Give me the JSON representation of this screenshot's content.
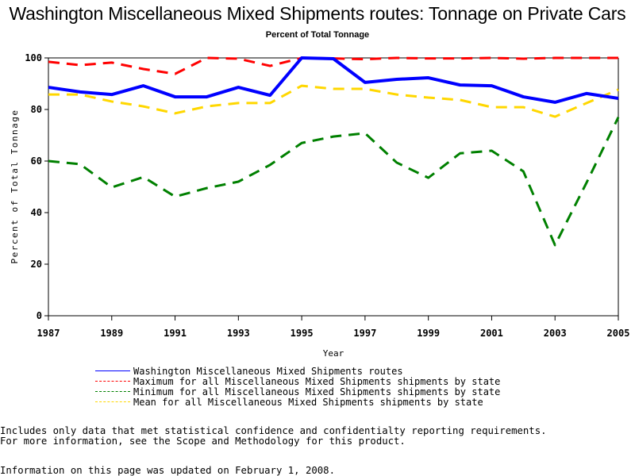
{
  "header": {
    "title": "Washington Miscellaneous Mixed Shipments routes: Tonnage on Private Cars",
    "subtitle": "Percent of Total Tonnage"
  },
  "chart_data": {
    "type": "line",
    "title": "Washington Miscellaneous Mixed Shipments routes: Tonnage on Private Cars",
    "subtitle": "Percent of Total Tonnage",
    "xlabel": "Year",
    "ylabel": "Percent of Total Tonnage",
    "xlim": [
      1987,
      2005
    ],
    "ylim": [
      0,
      100
    ],
    "x_ticks": [
      "1987",
      "1989",
      "1991",
      "1993",
      "1995",
      "1997",
      "1999",
      "2001",
      "2003",
      "2005"
    ],
    "y_ticks": [
      "0",
      "20",
      "40",
      "60",
      "80",
      "100"
    ],
    "grid": false,
    "legend_position": "bottom",
    "x": [
      1987,
      1988,
      1989,
      1990,
      1991,
      1992,
      1993,
      1994,
      1995,
      1996,
      1997,
      1998,
      1999,
      2000,
      2001,
      2002,
      2003,
      2004,
      2005
    ],
    "series": [
      {
        "name": "Washington Miscellaneous Mixed Shipments routes",
        "color": "#0000ff",
        "style": "solid",
        "values": [
          88.6,
          86.8,
          85.8,
          89.2,
          84.9,
          84.9,
          88.6,
          85.5,
          100,
          99.7,
          90.5,
          91.7,
          92.3,
          89.5,
          89.2,
          84.9,
          82.8,
          86.2,
          84.3
        ]
      },
      {
        "name": "Maximum for all Miscellaneous Mixed Shipments shipments by state",
        "color": "#ff0000",
        "style": "dashed",
        "values": [
          98.5,
          97.2,
          98.2,
          95.7,
          93.8,
          100,
          99.7,
          96.9,
          100,
          99.8,
          99.5,
          100,
          99.8,
          99.8,
          100,
          99.7,
          100,
          100,
          100
        ]
      },
      {
        "name": "Minimum for all Miscellaneous Mixed Shipments shipments by state",
        "color": "#008000",
        "style": "dashed",
        "values": [
          60,
          58.8,
          49.8,
          53.8,
          46.2,
          49.5,
          52,
          58.5,
          67,
          69.5,
          70.8,
          59.4,
          53.5,
          63,
          64,
          56,
          27.4,
          51.7,
          77
        ]
      },
      {
        "name": "Mean for all Miscellaneous Mixed Shipments shipments by state",
        "color": "#ffd700",
        "style": "dashed",
        "values": [
          85.8,
          85.8,
          83.1,
          81.2,
          78.5,
          81.2,
          82.5,
          82.5,
          89.2,
          88,
          88,
          85.8,
          84.6,
          83.7,
          80.9,
          80.9,
          77.2,
          82.5,
          87.7
        ]
      }
    ]
  },
  "footnotes": {
    "line1": "Includes only data that met statistical confidence and confidentialty reporting requirements.",
    "line2": "For more information, see the Scope and Methodology for this product.",
    "updated": "Information on this page was updated on February 1, 2008."
  }
}
